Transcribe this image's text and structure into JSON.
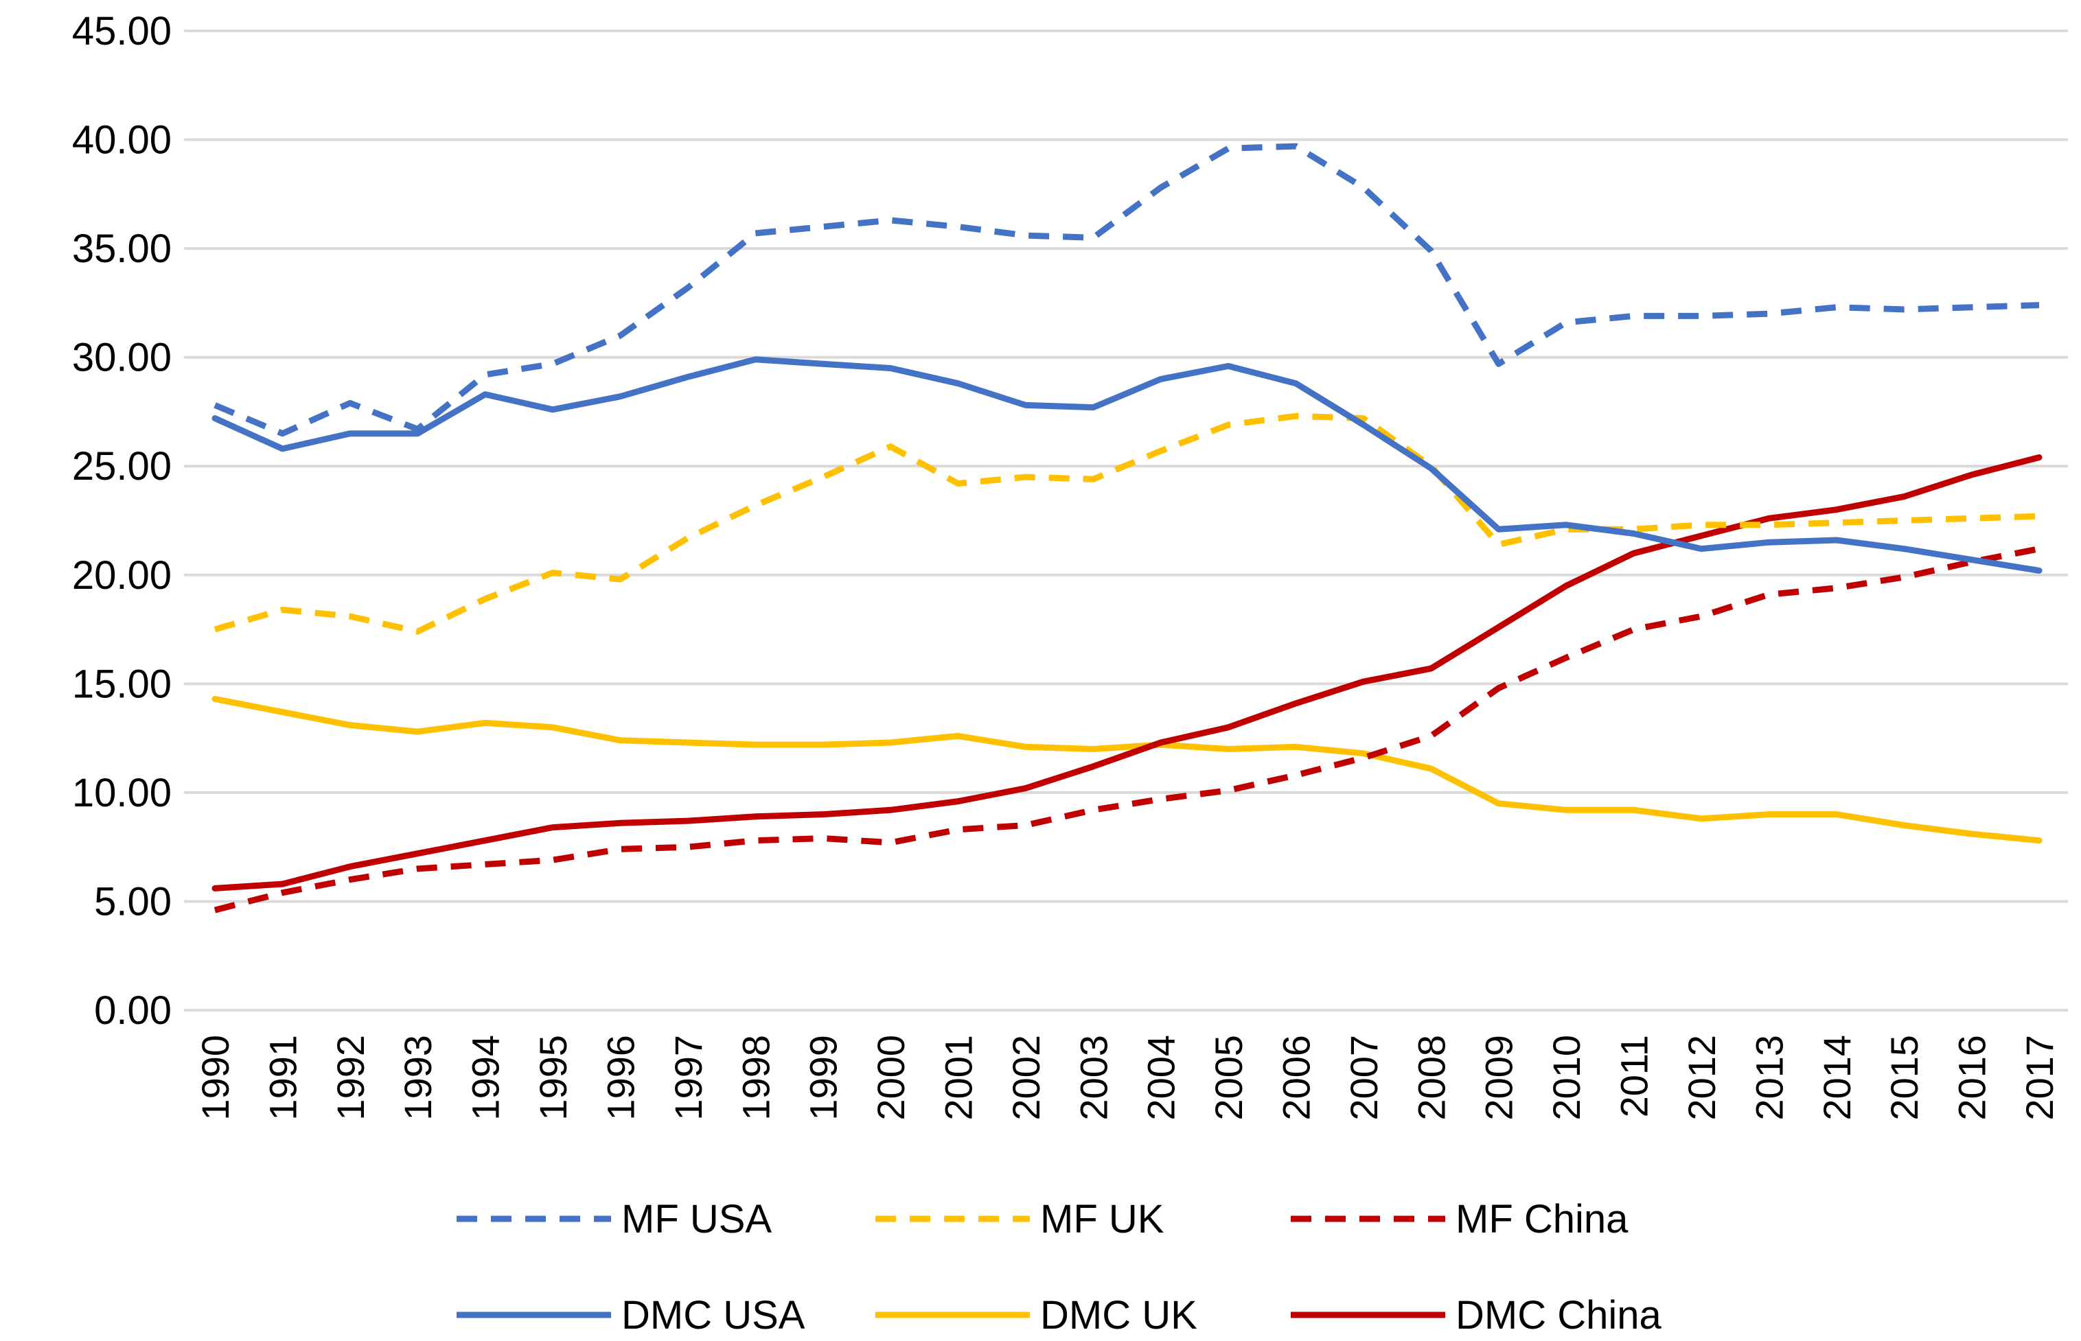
{
  "chart_data": {
    "type": "line",
    "title": "",
    "xlabel": "",
    "ylabel": "",
    "ylim": [
      0,
      45
    ],
    "yticks": [
      "0.00",
      "5.00",
      "10.00",
      "15.00",
      "20.00",
      "25.00",
      "30.00",
      "35.00",
      "40.00",
      "45.00"
    ],
    "grid": true,
    "legend_position": "bottom",
    "categories": [
      "1990",
      "1991",
      "1992",
      "1993",
      "1994",
      "1995",
      "1996",
      "1997",
      "1998",
      "1999",
      "2000",
      "2001",
      "2002",
      "2003",
      "2004",
      "2005",
      "2006",
      "2007",
      "2008",
      "2009",
      "2010",
      "2011",
      "2012",
      "2013",
      "2014",
      "2015",
      "2016",
      "2017"
    ],
    "series": [
      {
        "name": "MF USA",
        "color": "#4472C4",
        "style": "dashed",
        "values": [
          27.8,
          26.5,
          27.9,
          26.7,
          29.2,
          29.7,
          31.0,
          33.2,
          35.7,
          36.0,
          36.3,
          36.0,
          35.6,
          35.5,
          37.8,
          39.6,
          39.7,
          37.8,
          34.9,
          29.7,
          31.6,
          31.9,
          31.9,
          32.0,
          32.3,
          32.2,
          32.3,
          32.4
        ]
      },
      {
        "name": "MF UK",
        "color": "#FFC000",
        "style": "dashed",
        "values": [
          17.5,
          18.4,
          18.1,
          17.4,
          18.9,
          20.1,
          19.8,
          21.7,
          23.2,
          24.5,
          25.9,
          24.2,
          24.5,
          24.4,
          25.7,
          26.9,
          27.3,
          27.2,
          25.0,
          21.4,
          22.1,
          22.1,
          22.3,
          22.3,
          22.4,
          22.5,
          22.6,
          22.7
        ]
      },
      {
        "name": "MF China",
        "color": "#C00000",
        "style": "dashed",
        "values": [
          4.6,
          5.4,
          6.0,
          6.5,
          6.7,
          6.9,
          7.4,
          7.5,
          7.8,
          7.9,
          7.7,
          8.3,
          8.5,
          9.2,
          9.7,
          10.1,
          10.8,
          11.6,
          12.6,
          14.8,
          16.2,
          17.5,
          18.1,
          19.1,
          19.4,
          19.9,
          20.6,
          21.2
        ]
      },
      {
        "name": "DMC USA",
        "color": "#4472C4",
        "style": "solid",
        "values": [
          27.2,
          25.8,
          26.5,
          26.5,
          28.3,
          27.6,
          28.2,
          29.1,
          29.9,
          29.7,
          29.5,
          28.8,
          27.8,
          27.7,
          29.0,
          29.6,
          28.8,
          26.9,
          24.9,
          22.1,
          22.3,
          21.9,
          21.2,
          21.5,
          21.6,
          21.2,
          20.7,
          20.2
        ]
      },
      {
        "name": "DMC UK",
        "color": "#FFC000",
        "style": "solid",
        "values": [
          14.3,
          13.7,
          13.1,
          12.8,
          13.2,
          13.0,
          12.4,
          12.3,
          12.2,
          12.2,
          12.3,
          12.6,
          12.1,
          12.0,
          12.2,
          12.0,
          12.1,
          11.8,
          11.1,
          9.5,
          9.2,
          9.2,
          8.8,
          9.0,
          9.0,
          8.5,
          8.1,
          7.8
        ]
      },
      {
        "name": "DMC China",
        "color": "#C00000",
        "style": "solid",
        "values": [
          5.6,
          5.8,
          6.6,
          7.2,
          7.8,
          8.4,
          8.6,
          8.7,
          8.9,
          9.0,
          9.2,
          9.6,
          10.2,
          11.2,
          12.3,
          13.0,
          14.1,
          15.1,
          15.7,
          17.6,
          19.5,
          21.0,
          21.8,
          22.6,
          23.0,
          23.6,
          24.6,
          25.4
        ]
      }
    ]
  }
}
